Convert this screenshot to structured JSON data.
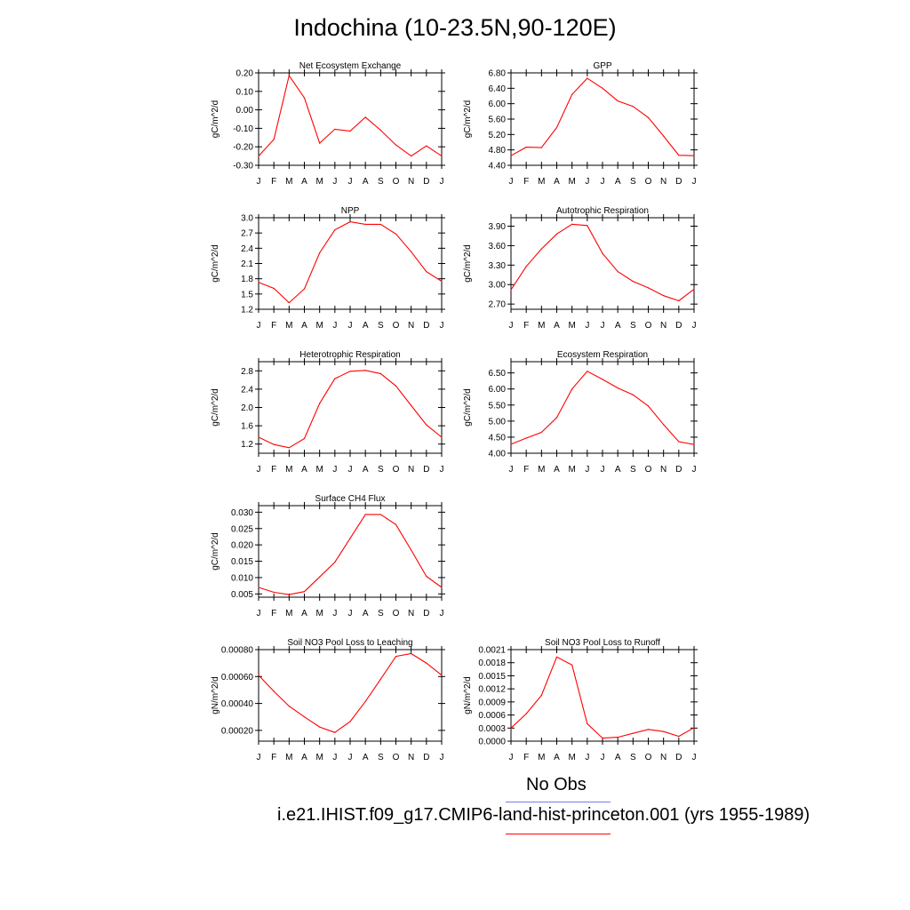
{
  "title": "Indochina (10-23.5N,90-120E)",
  "colors": {
    "model": "#ff0000",
    "obs": "#6f7fe8",
    "axis": "#000000"
  },
  "legend": {
    "obs_label": "No Obs",
    "model_label": "i.e21.IHIST.f09_g17.CMIP6-land-hist-princeton.001 (yrs 1955-1989)"
  },
  "chart_data": [
    {
      "type": "line",
      "title": "Net Ecosystem Exchange",
      "ylabel": "gC/m^2/d",
      "categories": [
        "J",
        "F",
        "M",
        "A",
        "M",
        "J",
        "J",
        "A",
        "S",
        "O",
        "N",
        "D",
        "J"
      ],
      "yticks": [
        0.2,
        0.1,
        0.0,
        -0.1,
        -0.2,
        -0.3
      ],
      "ytick_labels": [
        "0.20",
        "0.10",
        "0.00",
        "-0.10",
        "-0.20",
        "-0.30"
      ],
      "ylim": [
        -0.3,
        0.2
      ],
      "series": [
        {
          "values": [
            -0.25,
            -0.16,
            0.185,
            0.065,
            -0.18,
            -0.105,
            -0.115,
            -0.04,
            -0.11,
            -0.19,
            -0.25,
            -0.195,
            -0.25
          ]
        }
      ]
    },
    {
      "type": "line",
      "title": "GPP",
      "ylabel": "gC/m^2/d",
      "categories": [
        "J",
        "F",
        "M",
        "A",
        "M",
        "J",
        "J",
        "A",
        "S",
        "O",
        "N",
        "D",
        "J"
      ],
      "yticks": [
        6.8,
        6.4,
        6.0,
        5.6,
        5.2,
        4.8,
        4.4
      ],
      "ytick_labels": [
        "6.80",
        "6.40",
        "6.00",
        "5.60",
        "5.20",
        "4.80",
        "4.40"
      ],
      "ylim": [
        4.4,
        6.8
      ],
      "series": [
        {
          "values": [
            4.65,
            4.87,
            4.86,
            5.38,
            6.24,
            6.66,
            6.4,
            6.07,
            5.93,
            5.64,
            5.16,
            4.66,
            4.65
          ]
        }
      ]
    },
    {
      "type": "line",
      "title": "NPP",
      "ylabel": "gC/m^2/d",
      "categories": [
        "J",
        "F",
        "M",
        "A",
        "M",
        "J",
        "J",
        "A",
        "S",
        "O",
        "N",
        "D",
        "J"
      ],
      "yticks": [
        3.0,
        2.7,
        2.4,
        2.1,
        1.8,
        1.5,
        1.2
      ],
      "ytick_labels": [
        "3.0",
        "2.7",
        "2.4",
        "2.1",
        "1.8",
        "1.5",
        "1.2"
      ],
      "ylim": [
        1.2,
        3.0
      ],
      "series": [
        {
          "values": [
            1.73,
            1.61,
            1.33,
            1.6,
            2.31,
            2.76,
            2.92,
            2.87,
            2.87,
            2.68,
            2.33,
            1.94,
            1.75
          ]
        }
      ]
    },
    {
      "type": "line",
      "title": "Autotrophic Respiration",
      "ylabel": "gC/m^2/d",
      "categories": [
        "J",
        "F",
        "M",
        "A",
        "M",
        "J",
        "J",
        "A",
        "S",
        "O",
        "N",
        "D",
        "J"
      ],
      "yticks": [
        3.9,
        3.6,
        3.3,
        3.0,
        2.7
      ],
      "ytick_labels": [
        "3.90",
        "3.60",
        "3.30",
        "3.00",
        "2.70"
      ],
      "ylim": [
        2.62,
        4.03
      ],
      "series": [
        {
          "values": [
            2.92,
            3.28,
            3.55,
            3.78,
            3.93,
            3.91,
            3.48,
            3.2,
            3.05,
            2.95,
            2.83,
            2.75,
            2.93
          ]
        }
      ]
    },
    {
      "type": "line",
      "title": "Heterotrophic Respiration",
      "ylabel": "gC/m^2/d",
      "categories": [
        "J",
        "F",
        "M",
        "A",
        "M",
        "J",
        "J",
        "A",
        "S",
        "O",
        "N",
        "D",
        "J"
      ],
      "yticks": [
        2.8,
        2.4,
        2.0,
        1.6,
        1.2
      ],
      "ytick_labels": [
        "2.8",
        "2.4",
        "2.0",
        "1.6",
        "1.2"
      ],
      "ylim": [
        1.0,
        3.0
      ],
      "series": [
        {
          "values": [
            1.35,
            1.19,
            1.12,
            1.32,
            2.09,
            2.63,
            2.79,
            2.81,
            2.74,
            2.47,
            2.04,
            1.62,
            1.35
          ]
        }
      ]
    },
    {
      "type": "line",
      "title": "Ecosystem Respiration",
      "ylabel": "gC/m^2/d",
      "categories": [
        "J",
        "F",
        "M",
        "A",
        "M",
        "J",
        "J",
        "A",
        "S",
        "O",
        "N",
        "D",
        "J"
      ],
      "yticks": [
        6.5,
        6.0,
        5.5,
        5.0,
        4.5,
        4.0
      ],
      "ytick_labels": [
        "6.50",
        "6.00",
        "5.50",
        "5.00",
        "4.50",
        "4.00"
      ],
      "ylim": [
        4.0,
        6.85
      ],
      "series": [
        {
          "values": [
            4.28,
            4.47,
            4.65,
            5.11,
            6.0,
            6.55,
            6.3,
            6.03,
            5.82,
            5.47,
            4.89,
            4.36,
            4.27
          ]
        }
      ]
    },
    {
      "type": "line",
      "title": "Surface CH4 Flux",
      "ylabel": "gC/m^2/d",
      "categories": [
        "J",
        "F",
        "M",
        "A",
        "M",
        "J",
        "J",
        "A",
        "S",
        "O",
        "N",
        "D",
        "J"
      ],
      "yticks": [
        0.03,
        0.025,
        0.02,
        0.015,
        0.01,
        0.005
      ],
      "ytick_labels": [
        "0.030",
        "0.025",
        "0.020",
        "0.015",
        "0.010",
        "0.005"
      ],
      "ylim": [
        0.004,
        0.032
      ],
      "series": [
        {
          "values": [
            0.007,
            0.0055,
            0.0048,
            0.0057,
            0.0102,
            0.0147,
            0.022,
            0.0293,
            0.0293,
            0.0262,
            0.0184,
            0.0104,
            0.007
          ]
        }
      ]
    },
    {
      "type": "line",
      "title": "Soil NO3 Pool Loss to Leaching",
      "ylabel": "gN/m^2/d",
      "categories": [
        "J",
        "F",
        "M",
        "A",
        "M",
        "J",
        "J",
        "A",
        "S",
        "O",
        "N",
        "D",
        "J"
      ],
      "yticks": [
        0.0008,
        0.0006,
        0.0004,
        0.0002
      ],
      "ytick_labels": [
        "0.00080",
        "0.00060",
        "0.00040",
        "0.00020"
      ],
      "ylim": [
        0.00012,
        0.0008
      ],
      "series": [
        {
          "values": [
            0.00061,
            0.00049,
            0.00038,
            0.0003,
            0.000225,
            0.000185,
            0.000265,
            0.000415,
            0.00058,
            0.00075,
            0.00077,
            0.0007,
            0.00061
          ]
        }
      ]
    },
    {
      "type": "line",
      "title": "Soil NO3 Pool Loss to Runoff",
      "ylabel": "gN/m^2/d",
      "categories": [
        "J",
        "F",
        "M",
        "A",
        "M",
        "J",
        "J",
        "A",
        "S",
        "O",
        "N",
        "D",
        "J"
      ],
      "yticks": [
        0.0021,
        0.0018,
        0.0015,
        0.0012,
        0.0009,
        0.0006,
        0.0003,
        0.0
      ],
      "ytick_labels": [
        "0.0021",
        "0.0018",
        "0.0015",
        "0.0012",
        "0.0009",
        "0.0006",
        "0.0003",
        "0.0000"
      ],
      "ylim": [
        0.0,
        0.0021
      ],
      "series": [
        {
          "values": [
            0.0003,
            0.00063,
            0.00105,
            0.00193,
            0.00175,
            0.0004,
            7e-05,
            9e-05,
            0.00018,
            0.00027,
            0.00022,
            0.00011,
            0.00031
          ]
        }
      ]
    }
  ]
}
